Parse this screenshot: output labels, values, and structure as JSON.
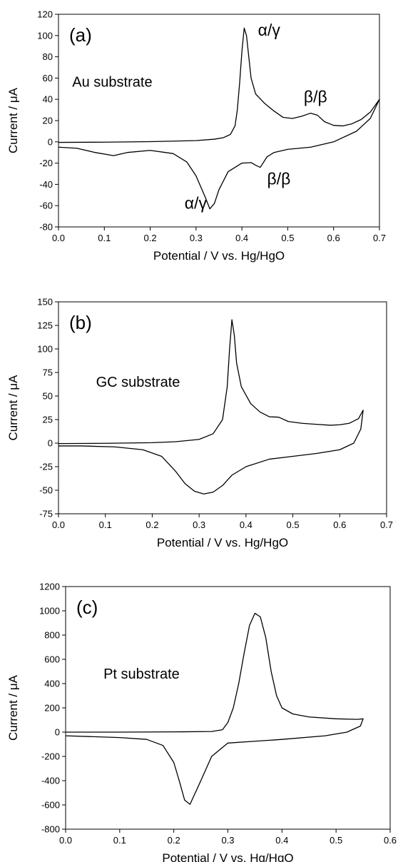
{
  "chart_data": [
    {
      "type": "line",
      "panel_label": "(a)",
      "xlabel": "Potential / V vs. Hg/HgO",
      "ylabel": "Current / μA",
      "xlim": [
        0,
        0.7
      ],
      "ylim": [
        -80,
        120
      ],
      "x_ticks": [
        "0.0",
        "0.1",
        "0.2",
        "0.3",
        "0.4",
        "0.5",
        "0.6",
        "0.7"
      ],
      "y_ticks": [
        "-80",
        "-60",
        "-40",
        "-20",
        "0",
        "20",
        "40",
        "60",
        "80",
        "100",
        "120"
      ],
      "grid": false,
      "legend": "none",
      "annotations": [
        {
          "text": "Au substrate",
          "x": 0.03,
          "y": 52,
          "kind": "series"
        },
        {
          "text": "α/γ",
          "x": 0.435,
          "y": 100,
          "kind": "peak"
        },
        {
          "text": "β/β",
          "x": 0.535,
          "y": 37,
          "kind": "peak"
        },
        {
          "text": "β/β",
          "x": 0.455,
          "y": -40,
          "kind": "peak"
        },
        {
          "text": "α/γ",
          "x": 0.275,
          "y": -63,
          "kind": "peak"
        }
      ],
      "series": [
        {
          "values": [
            [
              0.0,
              -0.5
            ],
            [
              0.1,
              -0.3
            ],
            [
              0.2,
              0.2
            ],
            [
              0.3,
              1.2
            ],
            [
              0.34,
              2.5
            ],
            [
              0.36,
              4.0
            ],
            [
              0.375,
              7.0
            ],
            [
              0.385,
              15
            ],
            [
              0.39,
              30
            ],
            [
              0.395,
              55
            ],
            [
              0.4,
              85
            ],
            [
              0.405,
              107
            ],
            [
              0.41,
              100
            ],
            [
              0.415,
              80
            ],
            [
              0.42,
              60
            ],
            [
              0.43,
              45
            ],
            [
              0.45,
              36
            ],
            [
              0.47,
              29
            ],
            [
              0.49,
              23
            ],
            [
              0.51,
              22
            ],
            [
              0.53,
              24
            ],
            [
              0.55,
              27
            ],
            [
              0.565,
              25
            ],
            [
              0.58,
              19
            ],
            [
              0.6,
              15.5
            ],
            [
              0.62,
              15
            ],
            [
              0.64,
              17
            ],
            [
              0.66,
              21
            ],
            [
              0.68,
              28
            ],
            [
              0.7,
              40
            ],
            [
              0.68,
              22
            ],
            [
              0.65,
              10
            ],
            [
              0.6,
              0
            ],
            [
              0.55,
              -5
            ],
            [
              0.5,
              -7
            ],
            [
              0.47,
              -10
            ],
            [
              0.455,
              -14
            ],
            [
              0.44,
              -24
            ],
            [
              0.43,
              -22
            ],
            [
              0.42,
              -19.5
            ],
            [
              0.4,
              -20
            ],
            [
              0.37,
              -28
            ],
            [
              0.35,
              -45
            ],
            [
              0.34,
              -58
            ],
            [
              0.33,
              -63
            ],
            [
              0.32,
              -52
            ],
            [
              0.3,
              -32
            ],
            [
              0.28,
              -19
            ],
            [
              0.25,
              -11
            ],
            [
              0.2,
              -8
            ],
            [
              0.15,
              -10
            ],
            [
              0.12,
              -13
            ],
            [
              0.08,
              -10
            ],
            [
              0.04,
              -6
            ],
            [
              0.0,
              -5
            ]
          ]
        }
      ]
    },
    {
      "type": "line",
      "panel_label": "(b)",
      "xlabel": "Potential / V vs. Hg/HgO",
      "ylabel": "Current / μA",
      "xlim": [
        0,
        0.7
      ],
      "ylim": [
        -75,
        150
      ],
      "x_ticks": [
        "0.0",
        "0.1",
        "0.2",
        "0.3",
        "0.4",
        "0.5",
        "0.6",
        "0.7"
      ],
      "y_ticks": [
        "-75",
        "-50",
        "-25",
        "0",
        "25",
        "50",
        "75",
        "100",
        "125",
        "150"
      ],
      "grid": false,
      "legend": "none",
      "annotations": [
        {
          "text": "GC substrate",
          "x": 0.08,
          "y": 60,
          "kind": "series"
        }
      ],
      "series": [
        {
          "values": [
            [
              0.0,
              -0.5
            ],
            [
              0.1,
              -0.2
            ],
            [
              0.2,
              0.5
            ],
            [
              0.25,
              1.5
            ],
            [
              0.3,
              4
            ],
            [
              0.33,
              10
            ],
            [
              0.35,
              25
            ],
            [
              0.36,
              60
            ],
            [
              0.365,
              100
            ],
            [
              0.37,
              131
            ],
            [
              0.375,
              115
            ],
            [
              0.38,
              85
            ],
            [
              0.39,
              60
            ],
            [
              0.41,
              42
            ],
            [
              0.43,
              33
            ],
            [
              0.45,
              28
            ],
            [
              0.47,
              27.5
            ],
            [
              0.49,
              23
            ],
            [
              0.52,
              21
            ],
            [
              0.55,
              20
            ],
            [
              0.58,
              19
            ],
            [
              0.6,
              19.5
            ],
            [
              0.62,
              21
            ],
            [
              0.64,
              26
            ],
            [
              0.65,
              35
            ],
            [
              0.645,
              15
            ],
            [
              0.63,
              0
            ],
            [
              0.6,
              -7
            ],
            [
              0.55,
              -11
            ],
            [
              0.5,
              -14
            ],
            [
              0.45,
              -17
            ],
            [
              0.4,
              -25
            ],
            [
              0.37,
              -34
            ],
            [
              0.35,
              -45
            ],
            [
              0.33,
              -52
            ],
            [
              0.31,
              -54
            ],
            [
              0.29,
              -51
            ],
            [
              0.27,
              -43
            ],
            [
              0.25,
              -30
            ],
            [
              0.22,
              -14
            ],
            [
              0.18,
              -7
            ],
            [
              0.12,
              -4
            ],
            [
              0.05,
              -3
            ],
            [
              0.0,
              -3
            ]
          ]
        }
      ]
    },
    {
      "type": "line",
      "panel_label": "(c)",
      "xlabel": "Potential / V vs. Hg/HgO",
      "ylabel": "Current / μA",
      "xlim": [
        0,
        0.6
      ],
      "ylim": [
        -800,
        1200
      ],
      "x_ticks": [
        "0.0",
        "0.1",
        "0.2",
        "0.3",
        "0.4",
        "0.5",
        "0.6"
      ],
      "y_ticks": [
        "-800",
        "-600",
        "-400",
        "-200",
        "0",
        "200",
        "400",
        "600",
        "800",
        "1000",
        "1200"
      ],
      "grid": false,
      "legend": "none",
      "annotations": [
        {
          "text": "Pt substrate",
          "x": 0.07,
          "y": 440,
          "kind": "series"
        }
      ],
      "series": [
        {
          "values": [
            [
              0.0,
              0
            ],
            [
              0.1,
              0
            ],
            [
              0.2,
              2
            ],
            [
              0.27,
              5
            ],
            [
              0.29,
              20
            ],
            [
              0.3,
              80
            ],
            [
              0.31,
              200
            ],
            [
              0.32,
              400
            ],
            [
              0.33,
              650
            ],
            [
              0.34,
              880
            ],
            [
              0.35,
              980
            ],
            [
              0.36,
              950
            ],
            [
              0.37,
              780
            ],
            [
              0.38,
              500
            ],
            [
              0.39,
              300
            ],
            [
              0.4,
              200
            ],
            [
              0.42,
              150
            ],
            [
              0.45,
              125
            ],
            [
              0.5,
              110
            ],
            [
              0.54,
              105
            ],
            [
              0.55,
              110
            ],
            [
              0.545,
              50
            ],
            [
              0.52,
              0
            ],
            [
              0.48,
              -30
            ],
            [
              0.4,
              -60
            ],
            [
              0.35,
              -75
            ],
            [
              0.3,
              -90
            ],
            [
              0.27,
              -200
            ],
            [
              0.25,
              -400
            ],
            [
              0.23,
              -595
            ],
            [
              0.22,
              -560
            ],
            [
              0.21,
              -400
            ],
            [
              0.2,
              -250
            ],
            [
              0.18,
              -110
            ],
            [
              0.15,
              -60
            ],
            [
              0.1,
              -45
            ],
            [
              0.0,
              -30
            ]
          ]
        }
      ]
    }
  ]
}
